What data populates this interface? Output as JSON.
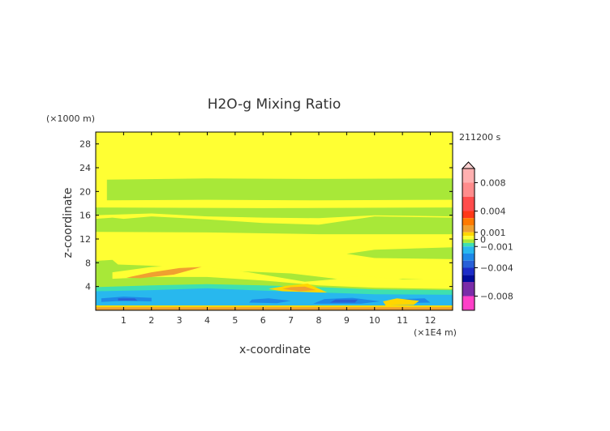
{
  "chart_data": {
    "type": "heatmap",
    "title": "H2O-g Mixing Ratio",
    "xlabel": "x-coordinate",
    "ylabel": "z-coordinate",
    "x_unit": "(×1E4 m)",
    "y_unit": "(×1000 m)",
    "time_label": "211200 s",
    "xlim": [
      0,
      12.8
    ],
    "ylim": [
      0,
      30
    ],
    "x_ticks": [
      1,
      2,
      3,
      4,
      5,
      6,
      7,
      8,
      9,
      10,
      11,
      12
    ],
    "y_ticks": [
      4,
      8,
      12,
      16,
      20,
      24,
      28
    ],
    "grid": false,
    "colorbar": {
      "labels": [
        {
          "value": 0.008,
          "text": "0.008"
        },
        {
          "value": 0.004,
          "text": "0.004"
        },
        {
          "value": 0.001,
          "text": "0.001"
        },
        {
          "value": 0,
          "text": "0"
        },
        {
          "value": -0.001,
          "text": "−0.001"
        },
        {
          "value": -0.004,
          "text": "−0.004"
        },
        {
          "value": -0.008,
          "text": "−0.008"
        }
      ],
      "bins": [
        {
          "min": 0.008,
          "max": 0.01,
          "color": "#ffb0b0"
        },
        {
          "min": 0.006,
          "max": 0.008,
          "color": "#ff8c8c"
        },
        {
          "min": 0.004,
          "max": 0.006,
          "color": "#ff4c4c"
        },
        {
          "min": 0.003,
          "max": 0.004,
          "color": "#ff3818"
        },
        {
          "min": 0.002,
          "max": 0.003,
          "color": "#ff7a00"
        },
        {
          "min": 0.001,
          "max": 0.002,
          "color": "#f0a030"
        },
        {
          "min": 0.0005,
          "max": 0.001,
          "color": "#ffd700"
        },
        {
          "min": 0,
          "max": 0.0005,
          "color": "#ffff33"
        },
        {
          "min": -0.0005,
          "max": 0,
          "color": "#a8e838"
        },
        {
          "min": -0.001,
          "max": -0.0005,
          "color": "#3ee0b0"
        },
        {
          "min": -0.002,
          "max": -0.001,
          "color": "#28b8ee"
        },
        {
          "min": -0.003,
          "max": -0.002,
          "color": "#1e88e8"
        },
        {
          "min": -0.004,
          "max": -0.003,
          "color": "#2860d8"
        },
        {
          "min": -0.005,
          "max": -0.004,
          "color": "#1c2cc8"
        },
        {
          "min": -0.006,
          "max": -0.005,
          "color": "#000c9c"
        },
        {
          "min": -0.008,
          "max": -0.006,
          "color": "#7a2ca8"
        },
        {
          "min": -0.01,
          "max": -0.008,
          "color": "#ff40c8"
        }
      ]
    },
    "field_regions": [
      {
        "level": 0,
        "color": "#ffff33",
        "points": [
          [
            0,
            0
          ],
          [
            12.8,
            0
          ],
          [
            12.8,
            30
          ],
          [
            0,
            30
          ]
        ]
      },
      {
        "level": -0.0003,
        "color": "#a8e838",
        "points": [
          [
            0.4,
            18.5
          ],
          [
            4,
            18.6
          ],
          [
            8,
            18.5
          ],
          [
            12.8,
            18.6
          ],
          [
            12.8,
            22.2
          ],
          [
            8,
            22.1
          ],
          [
            4,
            22.2
          ],
          [
            0.4,
            22
          ]
        ]
      },
      {
        "level": -0.0003,
        "color": "#a8e838",
        "points": [
          [
            0,
            16
          ],
          [
            2,
            16.3
          ],
          [
            4,
            15.8
          ],
          [
            6,
            15.6
          ],
          [
            8,
            15.5
          ],
          [
            10,
            16
          ],
          [
            12.8,
            15.8
          ],
          [
            12.8,
            17.3
          ],
          [
            6,
            17.2
          ],
          [
            0,
            17.3
          ]
        ]
      },
      {
        "level": -0.0003,
        "color": "#a8e838",
        "points": [
          [
            0,
            13.2
          ],
          [
            4,
            13.1
          ],
          [
            8,
            12.8
          ],
          [
            12.8,
            12.8
          ],
          [
            12.8,
            15.6
          ],
          [
            10,
            15.8
          ],
          [
            8,
            14.4
          ],
          [
            6,
            14.7
          ],
          [
            4,
            15.3
          ],
          [
            2,
            15.8
          ],
          [
            1,
            15.4
          ],
          [
            0.6,
            15.6
          ],
          [
            0,
            15.4
          ]
        ]
      },
      {
        "level": -0.0003,
        "color": "#a8e838",
        "points": [
          [
            9,
            9.5
          ],
          [
            10,
            8.8
          ],
          [
            12.8,
            8.6
          ],
          [
            12.8,
            10.6
          ],
          [
            10,
            10.2
          ]
        ]
      },
      {
        "level": -0.0003,
        "color": "#a8e838",
        "points": [
          [
            0,
            2.2
          ],
          [
            12.8,
            2.2
          ],
          [
            12.8,
            5
          ],
          [
            11,
            5.3
          ],
          [
            9.5,
            4.8
          ],
          [
            7,
            6.2
          ],
          [
            4,
            6.8
          ],
          [
            2,
            7.5
          ],
          [
            0.8,
            7.7
          ],
          [
            0.6,
            8.5
          ],
          [
            0,
            8.3
          ]
        ]
      },
      {
        "level": 0.0003,
        "color": "#ffff33",
        "points": [
          [
            0.6,
            6.4
          ],
          [
            2,
            7.3
          ],
          [
            3.5,
            7.6
          ],
          [
            5.5,
            6.4
          ],
          [
            7.5,
            4.8
          ],
          [
            8.5,
            5.2
          ],
          [
            9.5,
            5.8
          ],
          [
            11,
            5.2
          ],
          [
            12.8,
            5.2
          ],
          [
            12.8,
            3.6
          ],
          [
            10,
            3.8
          ],
          [
            8,
            4.2
          ],
          [
            6,
            5
          ],
          [
            4,
            5.6
          ],
          [
            2,
            5.6
          ],
          [
            0.6,
            5.3
          ]
        ]
      },
      {
        "level": -0.0008,
        "color": "#3ee0b0",
        "points": [
          [
            0,
            1.8
          ],
          [
            12.8,
            1.8
          ],
          [
            12.8,
            3.4
          ],
          [
            10,
            3.5
          ],
          [
            8,
            3.9
          ],
          [
            6,
            4.2
          ],
          [
            4,
            4.4
          ],
          [
            2,
            4.2
          ],
          [
            0,
            3.9
          ]
        ]
      },
      {
        "level": 0.0008,
        "color": "#ffd700",
        "points": [
          [
            6.2,
            3.6
          ],
          [
            7.2,
            2.8
          ],
          [
            8.3,
            3
          ],
          [
            7.6,
            4.5
          ],
          [
            6.8,
            4.1
          ]
        ]
      },
      {
        "level": 0.0015,
        "color": "#f0a030",
        "points": [
          [
            6.7,
            3.6
          ],
          [
            7.3,
            3.2
          ],
          [
            7.9,
            3.4
          ],
          [
            7.5,
            4
          ],
          [
            7,
            3.9
          ]
        ]
      },
      {
        "level": 0.0015,
        "color": "#f0a030",
        "points": [
          [
            1.1,
            5.5
          ],
          [
            2,
            6.4
          ],
          [
            3,
            7.1
          ],
          [
            3.8,
            7.3
          ],
          [
            2.8,
            6
          ],
          [
            1.6,
            5.4
          ]
        ]
      },
      {
        "level": -0.0015,
        "color": "#28b8ee",
        "points": [
          [
            0,
            0.8
          ],
          [
            12.8,
            0.8
          ],
          [
            12.8,
            2.6
          ],
          [
            10,
            2.7
          ],
          [
            8,
            3
          ],
          [
            6,
            3.3
          ],
          [
            4,
            3.7
          ],
          [
            2,
            3.4
          ],
          [
            0,
            3.2
          ]
        ]
      },
      {
        "level": -0.0025,
        "color": "#1e88e8",
        "points": [
          [
            0.2,
            1.4
          ],
          [
            1,
            1.6
          ],
          [
            2,
            1.5
          ],
          [
            2,
            2.1
          ],
          [
            1,
            2.3
          ],
          [
            0.2,
            2
          ]
        ]
      },
      {
        "level": -0.0025,
        "color": "#1e88e8",
        "points": [
          [
            5.5,
            1.3
          ],
          [
            6.5,
            1.2
          ],
          [
            7,
            1.6
          ],
          [
            6.2,
            2
          ],
          [
            5.6,
            1.8
          ]
        ]
      },
      {
        "level": -0.0025,
        "color": "#1e88e8",
        "points": [
          [
            7.8,
            1.1
          ],
          [
            9.5,
            1.1
          ],
          [
            10.2,
            1.5
          ],
          [
            9.2,
            2.1
          ],
          [
            8.2,
            1.9
          ]
        ]
      },
      {
        "level": -0.0025,
        "color": "#1e88e8",
        "points": [
          [
            10.8,
            1.2
          ],
          [
            12,
            1.3
          ],
          [
            11.8,
            2
          ],
          [
            11,
            1.9
          ]
        ]
      },
      {
        "level": -0.0035,
        "color": "#2860d8",
        "points": [
          [
            8.4,
            1.3
          ],
          [
            9.3,
            1.3
          ],
          [
            9.4,
            1.8
          ],
          [
            8.6,
            1.8
          ]
        ]
      },
      {
        "level": -0.0035,
        "color": "#2860d8",
        "points": [
          [
            0.8,
            1.6
          ],
          [
            1.5,
            1.6
          ],
          [
            1.4,
            2
          ],
          [
            0.8,
            2
          ]
        ]
      },
      {
        "level": 0.0008,
        "color": "#ffd700",
        "points": [
          [
            0,
            0.2
          ],
          [
            12.8,
            0.2
          ],
          [
            12.8,
            0.8
          ],
          [
            0,
            0.8
          ]
        ]
      },
      {
        "level": 0.0015,
        "color": "#f0a030",
        "points": [
          [
            0,
            0
          ],
          [
            12.8,
            0
          ],
          [
            12.8,
            0.5
          ],
          [
            0,
            0.5
          ]
        ]
      },
      {
        "level": 0.0008,
        "color": "#ffd700",
        "points": [
          [
            10.4,
            0.8
          ],
          [
            11.4,
            0.9
          ],
          [
            11.6,
            1.6
          ],
          [
            10.8,
            2
          ],
          [
            10.3,
            1.5
          ]
        ]
      }
    ]
  }
}
